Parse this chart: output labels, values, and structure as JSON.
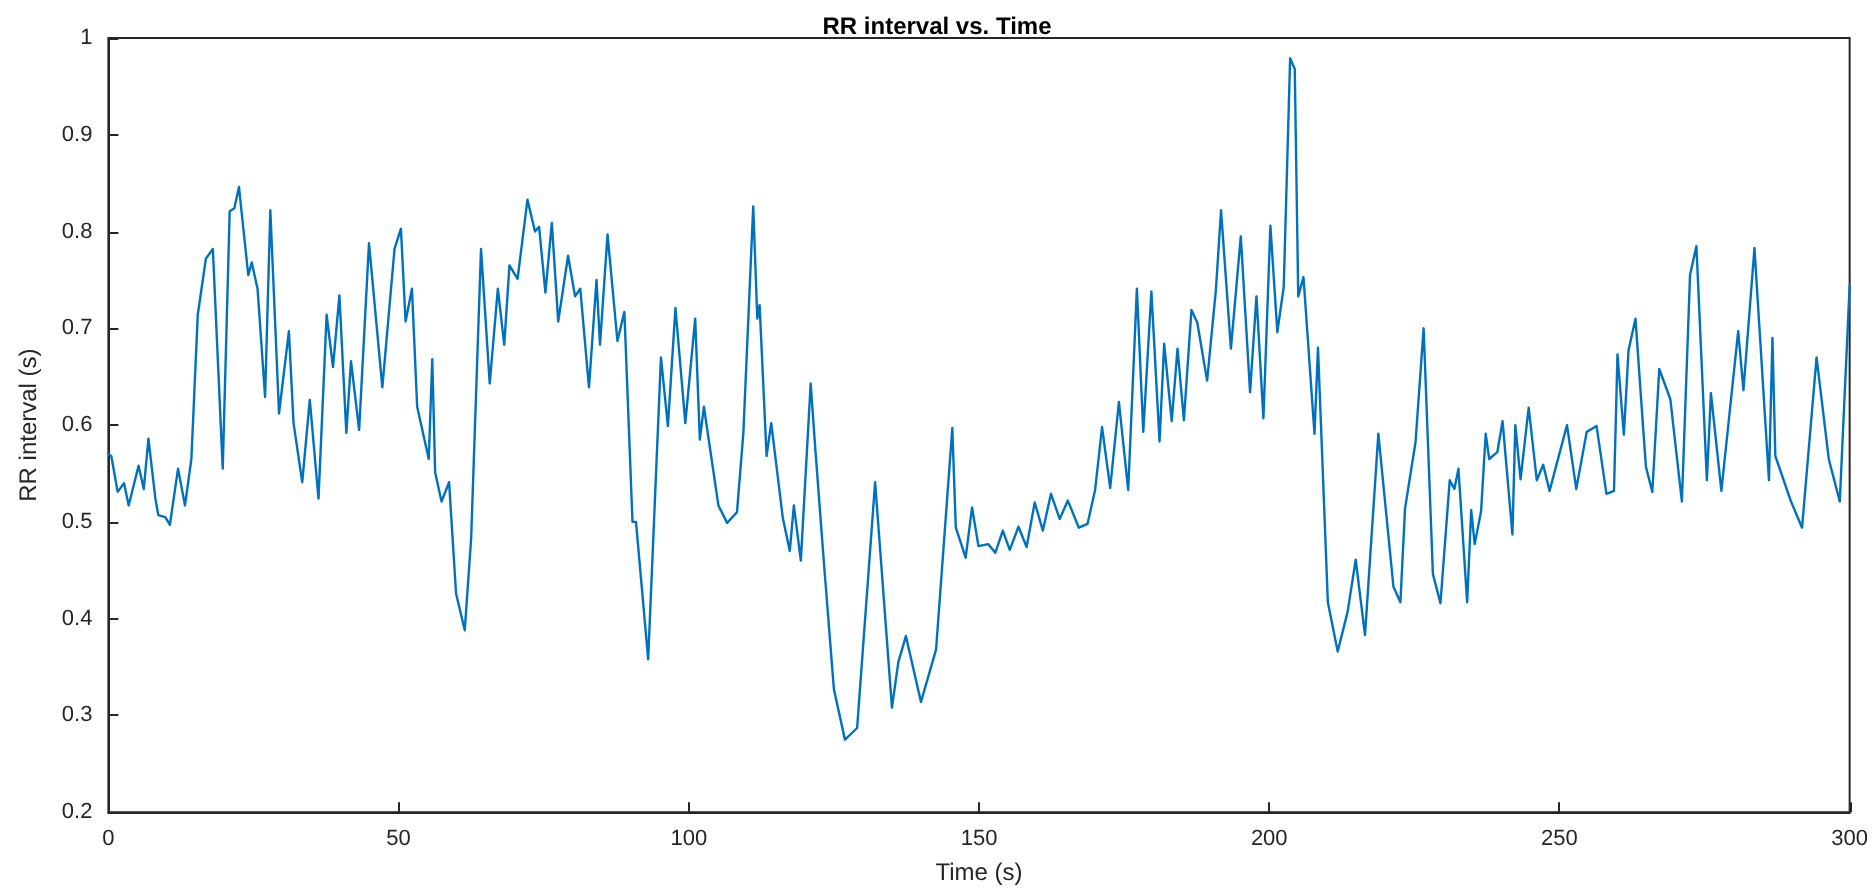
{
  "chart_data": {
    "type": "line",
    "title": "RR interval vs. Time",
    "xlabel": "Time (s)",
    "ylabel": "RR interval (s)",
    "xlim": [
      0,
      300
    ],
    "xticks": [
      0,
      50,
      100,
      150,
      200,
      250,
      300
    ],
    "ylim": [
      0.2,
      1
    ],
    "yticks": [
      0.2,
      0.3,
      0.4,
      0.5,
      0.6,
      0.7,
      0.8,
      0.9,
      1
    ],
    "marker": "none",
    "line_style": "solid",
    "series": [
      {
        "color": "#0072bd",
        "x": [
          0,
          0.5,
          1.6,
          2.7,
          3.5,
          5.2,
          6.1,
          6.9,
          8.1,
          8.6,
          9.8,
          10.6,
          12.0,
          13.2,
          14.3,
          15.4,
          16.8,
          18.0,
          19.7,
          20.9,
          21.7,
          22.5,
          24.1,
          24.7,
          25.7,
          27.0,
          27.9,
          29.4,
          31.1,
          31.9,
          33.4,
          34.7,
          36.2,
          37.6,
          38.7,
          39.8,
          41.0,
          41.8,
          43.2,
          44.9,
          47.2,
          49.3,
          50.4,
          51.2,
          52.3,
          53.2,
          55.2,
          55.8,
          56.3,
          57.4,
          58.7,
          59.9,
          61.4,
          62.5,
          64.2,
          65.7,
          67.1,
          68.2,
          69.1,
          70.5,
          72.2,
          73.5,
          74.2,
          75.3,
          76.4,
          77.5,
          79.2,
          80.4,
          81.3,
          82.8,
          84.1,
          84.7,
          86.0,
          87.7,
          88.9,
          90.3,
          90.9,
          93.0,
          95.2,
          96.4,
          97.7,
          99.4,
          101.1,
          101.9,
          102.6,
          105.1,
          106.6,
          108.3,
          109.4,
          111.1,
          111.8,
          112.2,
          113.4,
          114.2,
          116.2,
          117.4,
          118.1,
          119.3,
          121.0,
          121.8,
          123.3,
          125.0,
          126.9,
          129.0,
          132.1,
          135.0,
          136.1,
          137.4,
          140.0,
          142.6,
          145.4,
          146.0,
          147.7,
          148.8,
          149.9,
          151.6,
          152.8,
          154.1,
          155.3,
          156.8,
          158.2,
          159.6,
          161.0,
          162.4,
          163.9,
          165.3,
          167.2,
          168.7,
          170.0,
          171.2,
          172.6,
          174.1,
          175.7,
          177.2,
          178.3,
          179.7,
          181.1,
          181.9,
          183.2,
          184.2,
          185.3,
          186.6,
          187.6,
          189.3,
          190.8,
          191.7,
          193.4,
          195.1,
          196.7,
          197.8,
          199.0,
          200.2,
          201.4,
          202.5,
          203.6,
          204.4,
          205.0,
          205.9,
          207.8,
          208.4,
          210.1,
          211.8,
          213.5,
          214.9,
          216.5,
          218.8,
          221.4,
          222.6,
          223.4,
          225.2,
          226.6,
          228.2,
          229.5,
          231.1,
          231.9,
          232.6,
          234.1,
          234.8,
          235.4,
          236.5,
          237.3,
          237.9,
          239.3,
          240.2,
          241.9,
          242.4,
          243.3,
          244.7,
          246.1,
          247.2,
          248.3,
          251.3,
          252.9,
          254.7,
          256.4,
          258.1,
          259.4,
          260.0,
          261.1,
          261.9,
          263.1,
          264.2,
          264.9,
          266.0,
          267.2,
          269.1,
          271.1,
          272.5,
          273.6,
          275.4,
          276.1,
          277.9,
          280.8,
          281.7,
          283.6,
          286.1,
          286.7,
          287.2,
          289.9,
          291.8,
          294.3,
          296.4,
          298.3,
          300
        ],
        "values": [
          0.57,
          0.568,
          0.531,
          0.54,
          0.517,
          0.558,
          0.534,
          0.586,
          0.524,
          0.507,
          0.505,
          0.497,
          0.555,
          0.517,
          0.565,
          0.714,
          0.772,
          0.782,
          0.555,
          0.821,
          0.824,
          0.846,
          0.755,
          0.768,
          0.741,
          0.629,
          0.822,
          0.612,
          0.697,
          0.602,
          0.541,
          0.626,
          0.524,
          0.714,
          0.66,
          0.734,
          0.592,
          0.666,
          0.595,
          0.788,
          0.639,
          0.782,
          0.803,
          0.707,
          0.741,
          0.619,
          0.565,
          0.668,
          0.551,
          0.521,
          0.541,
          0.426,
          0.388,
          0.483,
          0.782,
          0.643,
          0.741,
          0.683,
          0.765,
          0.751,
          0.833,
          0.8,
          0.805,
          0.737,
          0.809,
          0.707,
          0.775,
          0.733,
          0.741,
          0.639,
          0.75,
          0.683,
          0.797,
          0.687,
          0.717,
          0.5,
          0.5,
          0.358,
          0.67,
          0.599,
          0.721,
          0.602,
          0.71,
          0.585,
          0.619,
          0.517,
          0.499,
          0.51,
          0.592,
          0.826,
          0.71,
          0.724,
          0.568,
          0.602,
          0.504,
          0.47,
          0.517,
          0.46,
          0.643,
          0.575,
          0.456,
          0.327,
          0.275,
          0.287,
          0.541,
          0.308,
          0.355,
          0.382,
          0.314,
          0.368,
          0.597,
          0.494,
          0.463,
          0.515,
          0.475,
          0.477,
          0.468,
          0.491,
          0.471,
          0.495,
          0.474,
          0.52,
          0.491,
          0.529,
          0.503,
          0.522,
          0.494,
          0.498,
          0.533,
          0.598,
          0.535,
          0.624,
          0.533,
          0.741,
          0.593,
          0.738,
          0.583,
          0.684,
          0.604,
          0.679,
          0.605,
          0.719,
          0.706,
          0.646,
          0.739,
          0.822,
          0.679,
          0.795,
          0.634,
          0.733,
          0.607,
          0.806,
          0.696,
          0.743,
          0.979,
          0.968,
          0.733,
          0.753,
          0.591,
          0.68,
          0.417,
          0.366,
          0.407,
          0.461,
          0.383,
          0.591,
          0.433,
          0.417,
          0.514,
          0.582,
          0.7,
          0.446,
          0.416,
          0.543,
          0.534,
          0.555,
          0.417,
          0.512,
          0.477,
          0.511,
          0.591,
          0.565,
          0.572,
          0.604,
          0.487,
          0.6,
          0.544,
          0.618,
          0.543,
          0.559,
          0.532,
          0.6,
          0.534,
          0.593,
          0.599,
          0.529,
          0.532,
          0.673,
          0.59,
          0.677,
          0.71,
          0.616,
          0.557,
          0.531,
          0.658,
          0.627,
          0.521,
          0.755,
          0.785,
          0.543,
          0.633,
          0.532,
          0.697,
          0.636,
          0.783,
          0.543,
          0.69,
          0.568,
          0.521,
          0.494,
          0.67,
          0.565,
          0.521,
          0.744
        ]
      }
    ]
  }
}
